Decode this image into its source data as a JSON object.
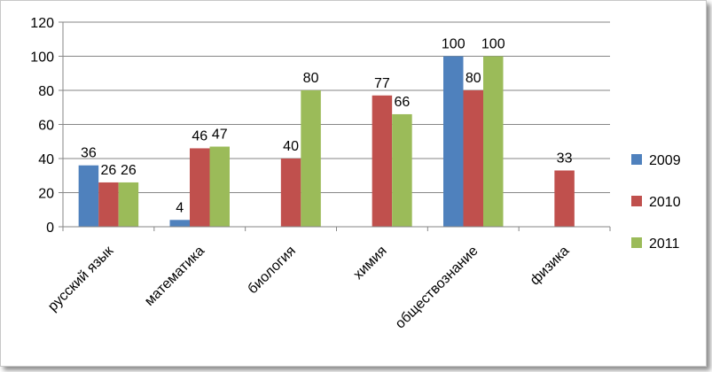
{
  "chart_data": {
    "type": "bar",
    "categories": [
      "русский язык",
      "математика",
      "биология",
      "химия",
      "обществознание",
      "физика"
    ],
    "series": [
      {
        "name": "2009",
        "color": "#4F81BD",
        "values": [
          36,
          4,
          null,
          null,
          100,
          null
        ]
      },
      {
        "name": "2010",
        "color": "#C0504D",
        "values": [
          26,
          46,
          40,
          77,
          80,
          33
        ]
      },
      {
        "name": "2011",
        "color": "#9BBB59",
        "values": [
          26,
          47,
          80,
          66,
          100,
          null
        ]
      }
    ],
    "ylim": [
      0,
      120
    ],
    "yticks": [
      0,
      20,
      40,
      60,
      80,
      100,
      120
    ],
    "grid": true,
    "legend": "right",
    "title": "",
    "xlabel": "",
    "ylabel": ""
  }
}
